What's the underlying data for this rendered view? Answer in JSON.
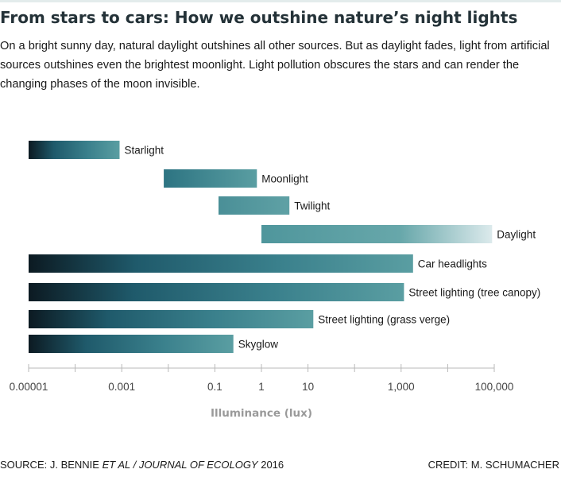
{
  "header": {
    "title": "From stars to cars: How we outshine nature’s night lights",
    "subtitle": "On a bright sunny day, natural daylight outshines all other sources. But as daylight fades, light from artificial sources outshines even the brightest moonlight. Light pollution obscures the stars and can render the changing phases of the moon invisible."
  },
  "footer": {
    "source_prefix": "SOURCE: J. BENNIE ",
    "source_italic": "ET AL / JOURNAL OF ECOLOGY",
    "source_suffix": " 2016",
    "credit": "CREDIT: M. SCHUMACHER"
  },
  "colors": {
    "dark": "#0c1a22",
    "deep_teal": "#1f5a6b",
    "teal": "#3a808c",
    "light_teal": "#5a9ea2",
    "pale": "#dceaec",
    "axis": "#b8b8b8"
  },
  "chart_data": {
    "type": "bar",
    "orientation": "horizontal-range",
    "x_scale": "log",
    "xlabel": "Illuminance (lux)",
    "ylabel": "",
    "xlim": [
      1e-05,
      100000
    ],
    "x_ticks": [
      1e-05,
      0.0001,
      0.001,
      0.01,
      0.1,
      1,
      10,
      100,
      1000,
      10000,
      100000
    ],
    "x_tick_labels": [
      {
        "value": 1e-05,
        "label": "0.00001"
      },
      {
        "value": 0.001,
        "label": "0.001"
      },
      {
        "value": 0.1,
        "label": "0.1"
      },
      {
        "value": 1,
        "label": "1"
      },
      {
        "value": 10,
        "label": "10"
      },
      {
        "value": 1000,
        "label": "1,000"
      },
      {
        "value": 100000,
        "label": "100,000"
      }
    ],
    "grid": false,
    "bars": [
      {
        "label": "Starlight",
        "min": 1e-05,
        "max": 0.0009,
        "gradient": "dark-to-teal"
      },
      {
        "label": "Moonlight",
        "min": 0.008,
        "max": 0.8,
        "gradient": "teal"
      },
      {
        "label": "Twilight",
        "min": 0.12,
        "max": 4,
        "gradient": "light-teal"
      },
      {
        "label": "Daylight",
        "min": 1,
        "max": 90000,
        "gradient": "teal-to-pale"
      },
      {
        "label": "Car headlights",
        "min": 1e-05,
        "max": 1800,
        "gradient": "dark-to-teal"
      },
      {
        "label": "Street lighting (tree canopy)",
        "min": 1e-05,
        "max": 1150,
        "gradient": "dark-to-teal"
      },
      {
        "label": "Street lighting (grass verge)",
        "min": 1e-05,
        "max": 13,
        "gradient": "dark-to-teal"
      },
      {
        "label": "Skyglow",
        "min": 1e-05,
        "max": 0.25,
        "gradient": "dark-to-teal"
      }
    ]
  }
}
